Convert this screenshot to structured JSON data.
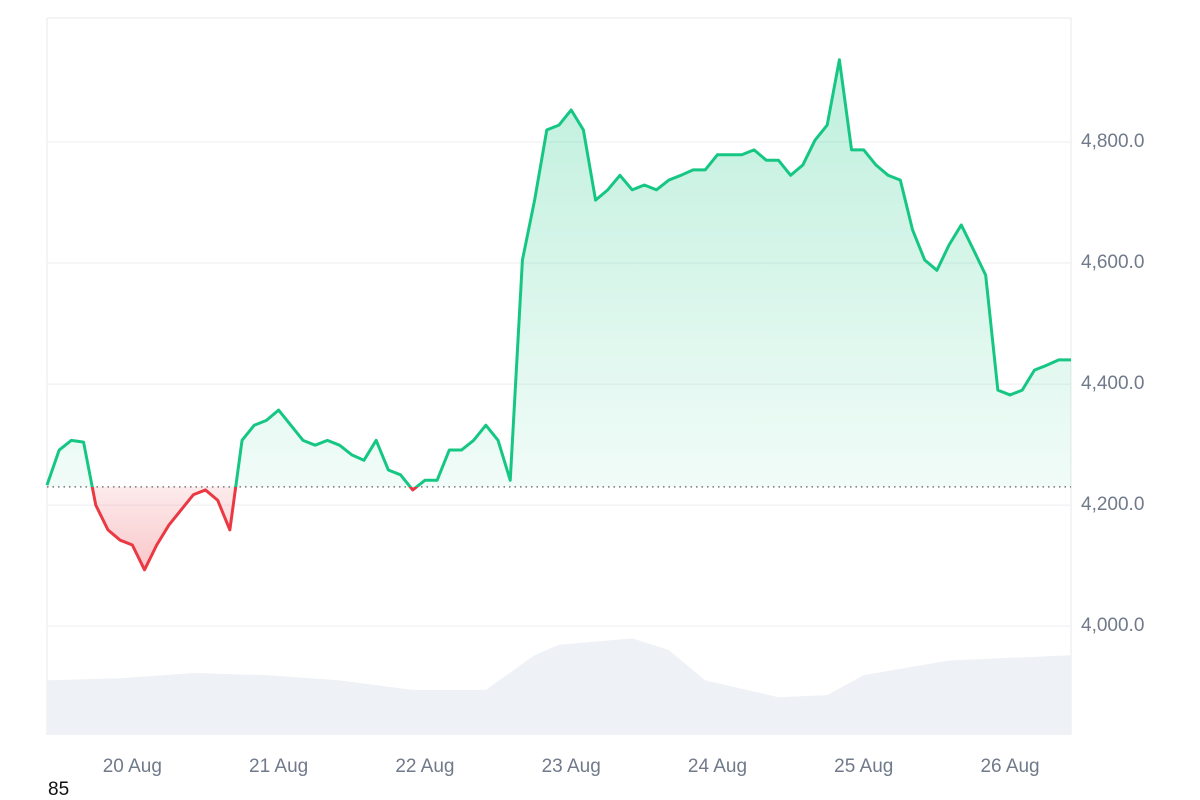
{
  "chart_data": {
    "type": "line",
    "footnote": "85",
    "x": [
      0,
      1,
      2,
      3,
      4,
      5,
      6,
      7,
      8,
      9,
      10,
      11,
      12,
      13,
      14,
      15,
      16,
      17,
      18,
      19,
      20,
      21,
      22,
      23,
      24,
      25,
      26,
      27,
      28,
      29,
      30,
      31,
      32,
      33,
      34,
      35,
      36,
      37,
      38,
      39,
      40,
      41,
      42,
      43,
      44,
      45,
      46,
      47,
      48,
      49,
      50,
      51,
      52,
      53,
      54,
      55,
      56,
      57,
      58,
      59,
      60,
      61,
      62,
      63,
      64,
      65,
      66,
      67,
      68,
      69,
      70,
      71,
      72,
      73,
      74,
      75,
      76,
      77,
      78,
      79,
      80,
      81,
      82,
      83,
      84
    ],
    "values": [
      4233,
      4291,
      4307,
      4304,
      4200,
      4159,
      4142,
      4134,
      4093,
      4134,
      4167,
      4192,
      4217,
      4225,
      4208,
      4159,
      4307,
      4332,
      4340,
      4357,
      4332,
      4307,
      4299,
      4307,
      4299,
      4283,
      4274,
      4307,
      4258,
      4250,
      4225,
      4241,
      4241,
      4291,
      4291,
      4307,
      4332,
      4307,
      4241,
      4605,
      4704,
      4820,
      4828,
      4853,
      4820,
      4704,
      4721,
      4745,
      4721,
      4729,
      4721,
      4737,
      4745,
      4754,
      4754,
      4779,
      4779,
      4779,
      4787,
      4770,
      4770,
      4745,
      4762,
      4803,
      4828,
      4936,
      4787,
      4787,
      4762,
      4745,
      4737,
      4655,
      4605,
      4588,
      4630,
      4663,
      4622,
      4580,
      4390,
      4382,
      4390,
      4423,
      4431,
      4440,
      4440
    ],
    "baseline": 4230,
    "up_color": "#16c784",
    "down_color": "#ea3943",
    "xlim": [
      0,
      84
    ],
    "xticks": [
      {
        "value": 7,
        "label": "20 Aug"
      },
      {
        "value": 19,
        "label": "21 Aug"
      },
      {
        "value": 31,
        "label": "22 Aug"
      },
      {
        "value": 43,
        "label": "23 Aug"
      },
      {
        "value": 55,
        "label": "24 Aug"
      },
      {
        "value": 67,
        "label": "25 Aug"
      },
      {
        "value": 79,
        "label": "26 Aug"
      }
    ],
    "ylim": [
      3820,
      5005
    ],
    "yticks": [
      {
        "value": 4000,
        "label": "4,000.0"
      },
      {
        "value": 4200,
        "label": "4,200.0"
      },
      {
        "value": 4400,
        "label": "4,400.0"
      },
      {
        "value": 4600,
        "label": "4,600.0"
      },
      {
        "value": 4800,
        "label": "4,800.0"
      }
    ],
    "grid": true,
    "volume": {
      "x": [
        0,
        6,
        12,
        18,
        24,
        30,
        36,
        40,
        42,
        48,
        51,
        54,
        60,
        64,
        67,
        74,
        84
      ],
      "values": [
        52,
        54,
        59,
        57,
        52,
        43,
        43,
        76,
        86,
        92,
        81,
        52,
        36,
        38,
        57,
        71,
        76
      ],
      "lim": [
        0,
        100
      ],
      "color": "#eef1f5"
    }
  }
}
